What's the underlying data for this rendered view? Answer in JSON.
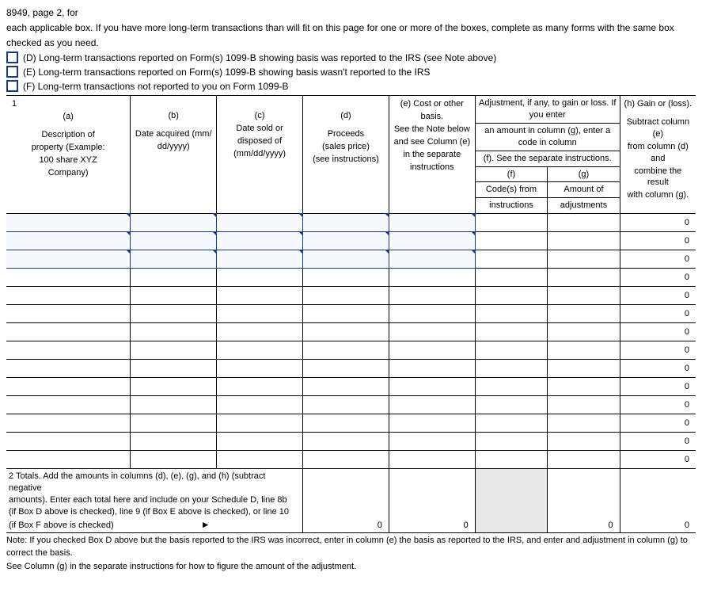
{
  "intro": {
    "line1": "8949, page 2, for",
    "line2": "each applicable box.  If you have more long-term transactions than will fit on this page for one or more of the boxes, complete as many forms with the same box",
    "line3": "checked as you need."
  },
  "checkboxes": [
    "(D) Long-term transactions reported on Form(s) 1099-B showing basis was reported to the IRS (see Note above)",
    "(E) Long-term transactions reported on Form(s) 1099-B showing basis wasn't reported to the IRS",
    "(F) Long-term transactions not reported to you on Form 1099-B"
  ],
  "columns": {
    "widths_pct": [
      18,
      12.5,
      12.5,
      12.5,
      12.5,
      10.5,
      10.5,
      11
    ],
    "row_number": "1",
    "a": {
      "l1": "(a)",
      "l2": "Description of",
      "l3": "property (Example:",
      "l4": "100 share XYZ",
      "l5": "Company)"
    },
    "b": {
      "l1": "(b)",
      "l2": "Date acquired (mm/",
      "l3": "dd/yyyy)"
    },
    "c": {
      "l1": "(c)",
      "l2": "Date sold or",
      "l3": "disposed of",
      "l4": "(mm/dd/yyyy)"
    },
    "d": {
      "l1": "(d)",
      "l2": "Proceeds",
      "l3": "(sales price)",
      "l4": "(see instructions)"
    },
    "e": {
      "l1": "(e) Cost or other",
      "l2": "basis.",
      "l3": "See the Note below",
      "l4": "and see Column (e)",
      "l5": "in the separate",
      "l6": "instructions"
    },
    "fg_top1": "Adjustment, if any, to gain or loss.  If you enter",
    "fg_top2": "an amount in column (g), enter a code in column",
    "fg_top3": "(f).  See the separate instructions.",
    "f": {
      "l1": "(f)",
      "l2": "Code(s) from",
      "l3": "instructions"
    },
    "g": {
      "l1": "(g)",
      "l2": "Amount of",
      "l3": "adjustments"
    },
    "h": {
      "l1": "(h) Gain or (loss).",
      "l2": "Subtract column (e)",
      "l3": "from column (d) and",
      "l4": "combine the result",
      "l5": "with column (g)."
    }
  },
  "data_rows": {
    "count": 14,
    "editable_rows": 3,
    "h_value": "0"
  },
  "totals": {
    "label_l1": "2  Totals.  Add the amounts in columns (d), (e), (g), and (h) (subtract negative",
    "label_l2": "   amounts).  Enter each total here and include on your Schedule D, line 8b",
    "label_l3": "   (if Box D above is checked), line 9 (if Box E above is checked), or line 10",
    "label_l4": "   (if Box F above is checked)",
    "arrow": "►",
    "d_val": "0",
    "e_val": "0",
    "g_val": "0",
    "h_val": "0"
  },
  "footnote": {
    "l1": "Note:  If you checked Box D above but the basis reported to the IRS was incorrect, enter in column (e) the basis as reported to the IRS, and enter and adjustment in column (g) to correct the basis.",
    "l2": "See Column (g) in the separate instructions for how to figure the amount of the adjustment."
  },
  "colors": {
    "checkbox_border": "#1a3a7a",
    "editable_bg": "#f5f8fc",
    "shaded_bg": "#e8e8e8",
    "grid": "#000000"
  }
}
